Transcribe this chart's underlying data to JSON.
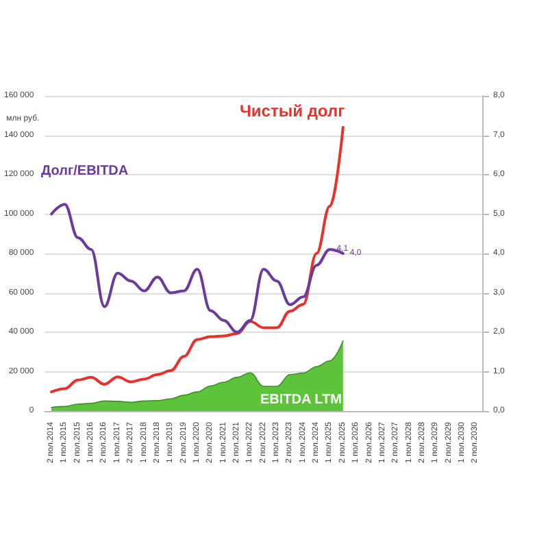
{
  "chart_data": {
    "type": "line",
    "ylabel": "млн руб.",
    "categories": [
      "2 пол.2014",
      "1 пол.2015",
      "2 пол.2015",
      "1 пол.2016",
      "2 пол.2016",
      "1 пол.2017",
      "2 пол.2017",
      "1 пол.2018",
      "2 пол.2018",
      "1 пол.2019",
      "2 пол.2019",
      "1 пол.2020",
      "2 пол.2020",
      "1 пол.2021",
      "2 пол.2021",
      "1 пол.2022",
      "2 пол.2022",
      "1 пол.2023",
      "2 пол.2023",
      "1 пол.2024",
      "2 пол.2024",
      "1 пол.2025",
      "2 пол.2025",
      "1 пол.2026",
      "2 пол.2026",
      "1 пол.2027",
      "2 пол.2027",
      "1 пол.2028",
      "2 пол.2028",
      "1 пол.2029",
      "2 пол.2029",
      "1 пол.2030",
      "2 пол.2030"
    ],
    "series": [
      {
        "name": "EBITDA LTM",
        "type": "area",
        "color": "#5cc33a",
        "values": [
          1800,
          2300,
          3500,
          3900,
          5100,
          4900,
          4400,
          5100,
          5300,
          6200,
          8100,
          9700,
          12700,
          14600,
          17100,
          19400,
          12500,
          12500,
          18500,
          19300,
          22500,
          25500,
          35600,
          null,
          null,
          null,
          null,
          null,
          null,
          null,
          null,
          null,
          null
        ]
      },
      {
        "name": "Чистый долг",
        "color": "#e8312a",
        "values": [
          9700,
          11300,
          15700,
          17100,
          13600,
          17300,
          14800,
          16200,
          18500,
          20500,
          27700,
          36300,
          37700,
          38100,
          39300,
          45500,
          42300,
          42300,
          50700,
          54200,
          80000,
          104000,
          144000,
          null,
          null,
          null,
          null,
          null,
          null,
          null,
          null,
          null,
          null
        ]
      },
      {
        "name": "Долг/EBITDA",
        "axis": "y2",
        "color": "#6a3a9c",
        "values": [
          5.0,
          5.25,
          4.4,
          4.1,
          2.65,
          3.5,
          3.3,
          3.05,
          3.4,
          3.0,
          3.05,
          3.6,
          2.55,
          2.3,
          2.0,
          2.3,
          3.6,
          3.3,
          2.7,
          2.9,
          3.7,
          4.1,
          4.0,
          null,
          null,
          null,
          null,
          null,
          null,
          null,
          null,
          null,
          null
        ],
        "value_labels": [
          null,
          null,
          null,
          null,
          null,
          null,
          null,
          null,
          null,
          null,
          null,
          null,
          null,
          null,
          null,
          null,
          null,
          null,
          null,
          null,
          null,
          "4,1",
          "4,0",
          null,
          null,
          null,
          null,
          null,
          null,
          null,
          null,
          null,
          null
        ]
      }
    ],
    "ylim": [
      0,
      160000
    ],
    "yticks": [
      0,
      20000,
      40000,
      60000,
      80000,
      100000,
      120000,
      140000,
      160000
    ],
    "y2lim": [
      0,
      8
    ],
    "y2ticks": [
      {
        "value": 0,
        "label": "0,0"
      },
      {
        "value": 1,
        "label": "1,0"
      },
      {
        "value": 2,
        "label": "2,0"
      },
      {
        "value": 3,
        "label": "3,0"
      },
      {
        "value": 4,
        "label": "4,0"
      },
      {
        "value": 5,
        "label": "5,0"
      },
      {
        "value": 6,
        "label": "6,0"
      },
      {
        "value": 7,
        "label": "7,0"
      },
      {
        "value": 8,
        "label": "8,0"
      }
    ],
    "grid": "y",
    "legend": false,
    "marker": "none",
    "line_style": "solid"
  }
}
